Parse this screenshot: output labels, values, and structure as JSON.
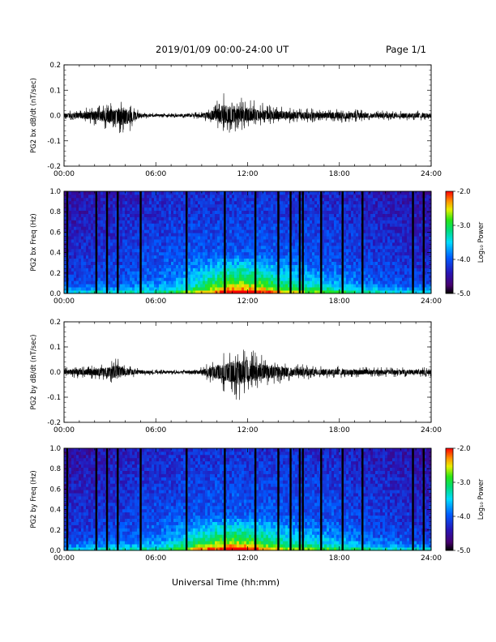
{
  "header": {
    "title": "2019/01/09  00:00-24:00 UT",
    "page": "Page 1/1"
  },
  "x_axis": {
    "title": "Universal Time (hh:mm)",
    "tick_labels": [
      "00:00",
      "06:00",
      "12:00",
      "18:00",
      "24:00"
    ],
    "range_hours": [
      0,
      24
    ]
  },
  "colorbar": {
    "label": "Log₁₀ Power",
    "tick_labels": [
      "-2.0",
      "-3.0",
      "-4.0",
      "-5.0"
    ],
    "range": [
      -5.0,
      -2.0
    ],
    "colormap": "rainbow (black-purple-blue-cyan-green-yellow-red)"
  },
  "chart_data": [
    {
      "type": "line",
      "ylabel": "PG2 bx dB/dt (nT/sec)",
      "ylim": [
        -0.2,
        0.2
      ],
      "ytick_labels": [
        "0.2",
        "0.1",
        "0.0",
        "-0.1",
        "-0.2"
      ],
      "x_unit": "UT hours",
      "envelope_x": [
        0,
        1,
        2,
        3,
        4,
        4.5,
        5,
        6,
        8,
        9,
        10,
        10.5,
        11,
        12,
        13,
        14,
        15,
        16,
        17,
        18,
        20,
        22,
        24
      ],
      "envelope_upper": [
        0.02,
        0.025,
        0.04,
        0.05,
        0.06,
        0.04,
        0.015,
        0.01,
        0.01,
        0.015,
        0.06,
        0.1,
        0.07,
        0.07,
        0.05,
        0.04,
        0.035,
        0.03,
        0.025,
        0.03,
        0.02,
        0.02,
        0.02
      ],
      "envelope_lower": [
        -0.02,
        -0.025,
        -0.04,
        -0.07,
        -0.09,
        -0.05,
        -0.015,
        -0.01,
        -0.01,
        -0.015,
        -0.05,
        -0.07,
        -0.07,
        -0.05,
        -0.04,
        -0.035,
        -0.03,
        -0.03,
        -0.025,
        -0.03,
        -0.02,
        -0.02,
        -0.02
      ],
      "color": "#000000"
    },
    {
      "type": "heatmap",
      "ylabel": "PG2 bx Freq (Hz)",
      "ylim": [
        0.0,
        1.0
      ],
      "ytick_labels": [
        "1.0",
        "0.8",
        "0.6",
        "0.4",
        "0.2",
        "0.0"
      ],
      "x_unit": "UT hours",
      "value_unit": "Log10 Power",
      "value_range": [
        -5.0,
        -2.0
      ],
      "data_gaps_hours": [
        0.2,
        2.1,
        2.8,
        3.5,
        5.0,
        8.0,
        10.5,
        12.5,
        14.0,
        14.8,
        15.4,
        15.6,
        16.8,
        18.2,
        19.5,
        22.8,
        23.5
      ],
      "enhancement": {
        "center_hours": 11.5,
        "max_freq_hz": 0.4,
        "peak_value": -2.2
      }
    },
    {
      "type": "line",
      "ylabel": "PG2 by dB/dt (nT/sec)",
      "ylim": [
        -0.2,
        0.2
      ],
      "ytick_labels": [
        "0.2",
        "0.1",
        "0.0",
        "-0.1",
        "-0.2"
      ],
      "x_unit": "UT hours",
      "envelope_x": [
        0,
        1,
        2,
        3,
        3.5,
        4,
        5,
        6,
        8,
        9,
        10,
        10.5,
        11,
        11.5,
        12,
        13,
        14,
        15,
        16,
        17,
        18,
        20,
        22,
        24
      ],
      "envelope_upper": [
        0.02,
        0.025,
        0.03,
        0.045,
        0.06,
        0.03,
        0.015,
        0.01,
        0.01,
        0.02,
        0.06,
        0.08,
        0.09,
        0.1,
        0.11,
        0.07,
        0.05,
        0.035,
        0.03,
        0.025,
        0.025,
        0.02,
        0.02,
        0.02
      ],
      "envelope_lower": [
        -0.02,
        -0.025,
        -0.03,
        -0.045,
        -0.06,
        -0.03,
        -0.015,
        -0.01,
        -0.01,
        -0.02,
        -0.06,
        -0.08,
        -0.1,
        -0.12,
        -0.09,
        -0.06,
        -0.05,
        -0.035,
        -0.03,
        -0.025,
        -0.025,
        -0.02,
        -0.02,
        -0.02
      ],
      "color": "#000000"
    },
    {
      "type": "heatmap",
      "ylabel": "PG2 by Freq (Hz)",
      "ylim": [
        0.0,
        1.0
      ],
      "ytick_labels": [
        "1.0",
        "0.8",
        "0.6",
        "0.4",
        "0.2",
        "0.0"
      ],
      "x_unit": "UT hours",
      "value_unit": "Log10 Power",
      "value_range": [
        -5.0,
        -2.0
      ],
      "data_gaps_hours": [
        0.2,
        2.1,
        2.8,
        3.5,
        5.0,
        8.0,
        10.5,
        12.5,
        14.0,
        14.8,
        15.4,
        15.6,
        16.8,
        18.2,
        19.5,
        22.8,
        23.5
      ],
      "enhancement": {
        "center_hours": 11.0,
        "max_freq_hz": 0.35,
        "peak_value": -2.5
      }
    }
  ]
}
